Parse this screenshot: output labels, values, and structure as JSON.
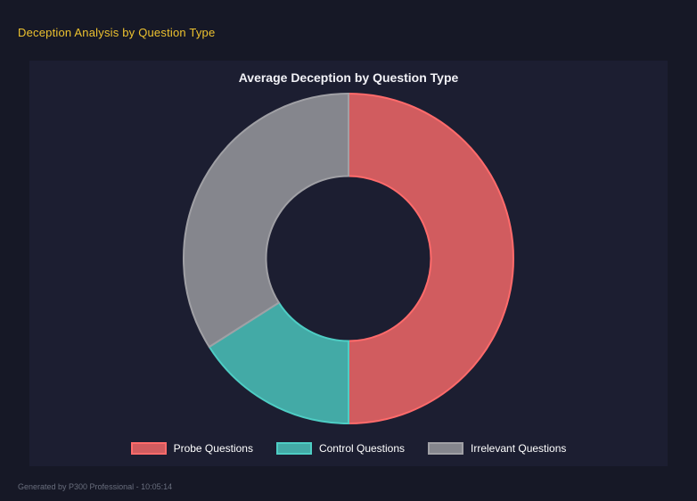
{
  "page": {
    "title": "Deception Analysis by Question Type",
    "footer": "Generated by P300 Professional - 10:05:14"
  },
  "colors": {
    "page_bg": "#161826",
    "panel_bg": "#1c1e31",
    "app_title": "#edc22f",
    "chart_title": "#f2f2f7",
    "legend_text": "#ffffff",
    "footer_text": "#696e7d"
  },
  "chart_data": {
    "type": "pie",
    "variant": "doughnut",
    "title": "Average Deception by Question Type",
    "categories": [
      "Probe Questions",
      "Control Questions",
      "Irrelevant Questions"
    ],
    "values": [
      50,
      16,
      34
    ],
    "value_note": "percent of circle, estimated from arc angles; no numeric labels shown",
    "series_colors": [
      "#ff6b6b",
      "#4ecdc4",
      "#a0a0a5"
    ],
    "fill_opacity": 0.8,
    "border_width": 2,
    "cutout_ratio": 0.5,
    "outer_radius_px": 185,
    "start_angle_deg": 0,
    "direction": "clockwise",
    "legend_position": "bottom",
    "grid": false
  }
}
